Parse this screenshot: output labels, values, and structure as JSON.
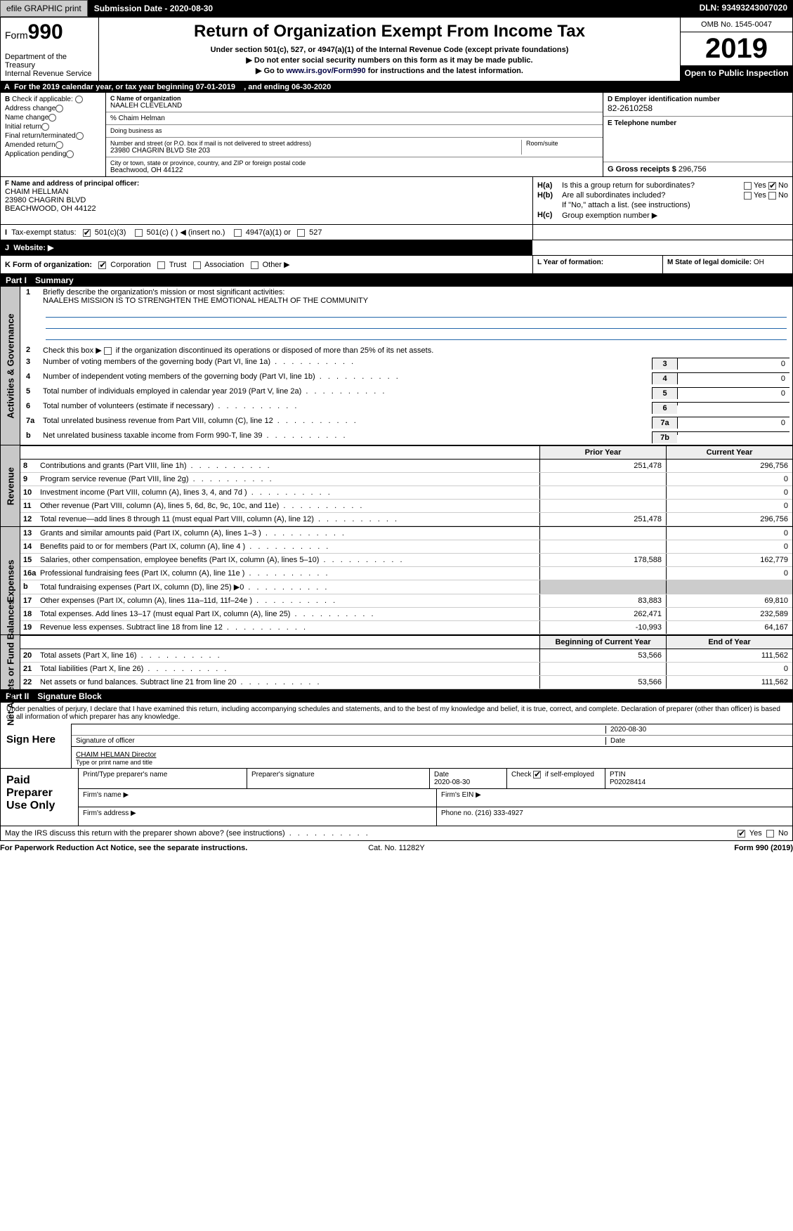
{
  "topbar": {
    "efile": "efile GRAPHIC print",
    "submission": "Submission Date - 2020-08-30",
    "dln": "DLN: 93493243007020"
  },
  "header": {
    "form_label": "Form",
    "form_no": "990",
    "dept": "Department of the Treasury\nInternal Revenue Service",
    "title": "Return of Organization Exempt From Income Tax",
    "sub1": "Under section 501(c), 527, or 4947(a)(1) of the Internal Revenue Code (except private foundations)",
    "sub2": "▶ Do not enter social security numbers on this form as it may be made public.",
    "sub3_pre": "▶ Go to ",
    "sub3_link": "www.irs.gov/Form990",
    "sub3_post": " for instructions and the latest information.",
    "omb": "OMB No. 1545-0047",
    "year": "2019",
    "open": "Open to Public Inspection"
  },
  "rowA": {
    "letter": "A",
    "text": "For the 2019 calendar year, or tax year beginning 07-01-2019",
    "end": ", and ending 06-30-2020"
  },
  "B": {
    "heading": "Check if applicable:",
    "items": [
      "Address change",
      "Name change",
      "Initial return",
      "Final return/terminated",
      "Amended return",
      "Application pending"
    ]
  },
  "C": {
    "name_lbl": "C Name of organization",
    "name": "NAALEH CLEVELAND",
    "care_of": "% Chaim Helman",
    "dba_lbl": "Doing business as",
    "dba": "",
    "street_lbl": "Number and street (or P.O. box if mail is not delivered to street address)",
    "street": "23980 CHAGRIN BLVD Ste 203",
    "room_lbl": "Room/suite",
    "city_lbl": "City or town, state or province, country, and ZIP or foreign postal code",
    "city": "Beachwood, OH  44122"
  },
  "D": {
    "lbl": "D Employer identification number",
    "val": "82-2610258"
  },
  "E": {
    "lbl": "E Telephone number",
    "val": ""
  },
  "G": {
    "lbl": "G Gross receipts $",
    "val": "296,756"
  },
  "F": {
    "lbl": "F  Name and address of principal officer:",
    "name": "CHAIM HELLMAN",
    "addr1": "23980 CHAGRIN BLVD",
    "addr2": "BEACHWOOD, OH  44122"
  },
  "H": {
    "a_lbl": "H(a)",
    "a_txt": "Is this a group return for subordinates?",
    "a_yes": "Yes",
    "a_no": "No",
    "b_lbl": "H(b)",
    "b_txt": "Are all subordinates included?",
    "b_yn": "Yes       No",
    "b_note": "If \"No,\" attach a list. (see instructions)",
    "c_lbl": "H(c)",
    "c_txt": "Group exemption number ▶"
  },
  "I": {
    "lbl": "Tax-exempt status:",
    "opts": [
      "501(c)(3)",
      "501(c) (  ) ◀ (insert no.)",
      "4947(a)(1) or",
      "527"
    ]
  },
  "J": {
    "lbl": "Website: ▶",
    "val": ""
  },
  "K": {
    "lbl": "K Form of organization:",
    "opts": [
      "Corporation",
      "Trust",
      "Association",
      "Other ▶"
    ]
  },
  "L": {
    "lbl": "L Year of formation:",
    "val": ""
  },
  "M": {
    "lbl": "M State of legal domicile:",
    "val": "OH"
  },
  "partI": {
    "num": "Part I",
    "title": "Summary"
  },
  "activities": {
    "vlabel": "Activities & Governance",
    "q1": "Briefly describe the organization's mission or most significant activities:",
    "mission": "NAALEHS MISSION IS TO STRENGHTEN THE EMOTIONAL HEALTH OF THE COMMUNITY",
    "q2": "Check this box ▶        if the organization discontinued its operations or disposed of more than 25% of its net assets.",
    "rows": [
      {
        "n": "3",
        "t": "Number of voting members of the governing body (Part VI, line 1a)",
        "bn": "3",
        "v": "0"
      },
      {
        "n": "4",
        "t": "Number of independent voting members of the governing body (Part VI, line 1b)",
        "bn": "4",
        "v": "0"
      },
      {
        "n": "5",
        "t": "Total number of individuals employed in calendar year 2019 (Part V, line 2a)",
        "bn": "5",
        "v": "0"
      },
      {
        "n": "6",
        "t": "Total number of volunteers (estimate if necessary)",
        "bn": "6",
        "v": ""
      },
      {
        "n": "7a",
        "t": "Total unrelated business revenue from Part VIII, column (C), line 12",
        "bn": "7a",
        "v": "0"
      },
      {
        "n": "b",
        "t": "Net unrelated business taxable income from Form 990-T, line 39",
        "bn": "7b",
        "v": ""
      }
    ]
  },
  "fin_hdr": {
    "prior": "Prior Year",
    "current": "Current Year"
  },
  "revenue": {
    "vlabel": "Revenue",
    "rows": [
      {
        "n": "8",
        "t": "Contributions and grants (Part VIII, line 1h)",
        "p": "251,478",
        "c": "296,756"
      },
      {
        "n": "9",
        "t": "Program service revenue (Part VIII, line 2g)",
        "p": "",
        "c": "0"
      },
      {
        "n": "10",
        "t": "Investment income (Part VIII, column (A), lines 3, 4, and 7d )",
        "p": "",
        "c": "0"
      },
      {
        "n": "11",
        "t": "Other revenue (Part VIII, column (A), lines 5, 6d, 8c, 9c, 10c, and 11e)",
        "p": "",
        "c": "0"
      },
      {
        "n": "12",
        "t": "Total revenue—add lines 8 through 11 (must equal Part VIII, column (A), line 12)",
        "p": "251,478",
        "c": "296,756"
      }
    ]
  },
  "expenses": {
    "vlabel": "Expenses",
    "rows": [
      {
        "n": "13",
        "t": "Grants and similar amounts paid (Part IX, column (A), lines 1–3 )",
        "p": "",
        "c": "0"
      },
      {
        "n": "14",
        "t": "Benefits paid to or for members (Part IX, column (A), line 4 )",
        "p": "",
        "c": "0"
      },
      {
        "n": "15",
        "t": "Salaries, other compensation, employee benefits (Part IX, column (A), lines 5–10)",
        "p": "178,588",
        "c": "162,779"
      },
      {
        "n": "16a",
        "t": "Professional fundraising fees (Part IX, column (A), line 11e )",
        "p": "",
        "c": "0"
      },
      {
        "n": "b",
        "t": "Total fundraising expenses (Part IX, column (D), line 25) ▶0",
        "p": null,
        "c": null
      },
      {
        "n": "17",
        "t": "Other expenses (Part IX, column (A), lines 11a–11d, 11f–24e )",
        "p": "83,883",
        "c": "69,810"
      },
      {
        "n": "18",
        "t": "Total expenses. Add lines 13–17 (must equal Part IX, column (A), line 25)",
        "p": "262,471",
        "c": "232,589"
      },
      {
        "n": "19",
        "t": "Revenue less expenses. Subtract line 18 from line 12",
        "p": "-10,993",
        "c": "64,167"
      }
    ]
  },
  "netassets": {
    "vlabel": "Net Assets or Fund Balances",
    "hdr_begin": "Beginning of Current Year",
    "hdr_end": "End of Year",
    "rows": [
      {
        "n": "20",
        "t": "Total assets (Part X, line 16)",
        "p": "53,566",
        "c": "111,562"
      },
      {
        "n": "21",
        "t": "Total liabilities (Part X, line 26)",
        "p": "",
        "c": "0"
      },
      {
        "n": "22",
        "t": "Net assets or fund balances. Subtract line 21 from line 20",
        "p": "53,566",
        "c": "111,562"
      }
    ]
  },
  "partII": {
    "num": "Part II",
    "title": "Signature Block"
  },
  "perjury": "Under penalties of perjury, I declare that I have examined this return, including accompanying schedules and statements, and to the best of my knowledge and belief, it is true, correct, and complete. Declaration of preparer (other than officer) is based on all information of which preparer has any knowledge.",
  "sign": {
    "lbl": "Sign Here",
    "date": "2020-08-30",
    "sig_lbl": "Signature of officer",
    "date_lbl": "Date",
    "name": "CHAIM HELMAN  Director",
    "name_lbl": "Type or print name and title"
  },
  "paid": {
    "lbl": "Paid Preparer Use Only",
    "h": [
      "Print/Type preparer's name",
      "Preparer's signature",
      "Date",
      "",
      "PTIN"
    ],
    "date": "2020-08-30",
    "check_txt": "Check        if self-employed",
    "ptin": "P02028414",
    "firm_name": "Firm's name   ▶",
    "firm_ein": "Firm's EIN ▶",
    "firm_addr": "Firm's address ▶",
    "phone": "Phone no. (216) 333-4927"
  },
  "footer": {
    "discuss": "May the IRS discuss this return with the preparer shown above? (see instructions)",
    "yes": "Yes",
    "no": "No",
    "pra": "For Paperwork Reduction Act Notice, see the separate instructions.",
    "cat": "Cat. No. 11282Y",
    "form": "Form 990 (2019)"
  }
}
